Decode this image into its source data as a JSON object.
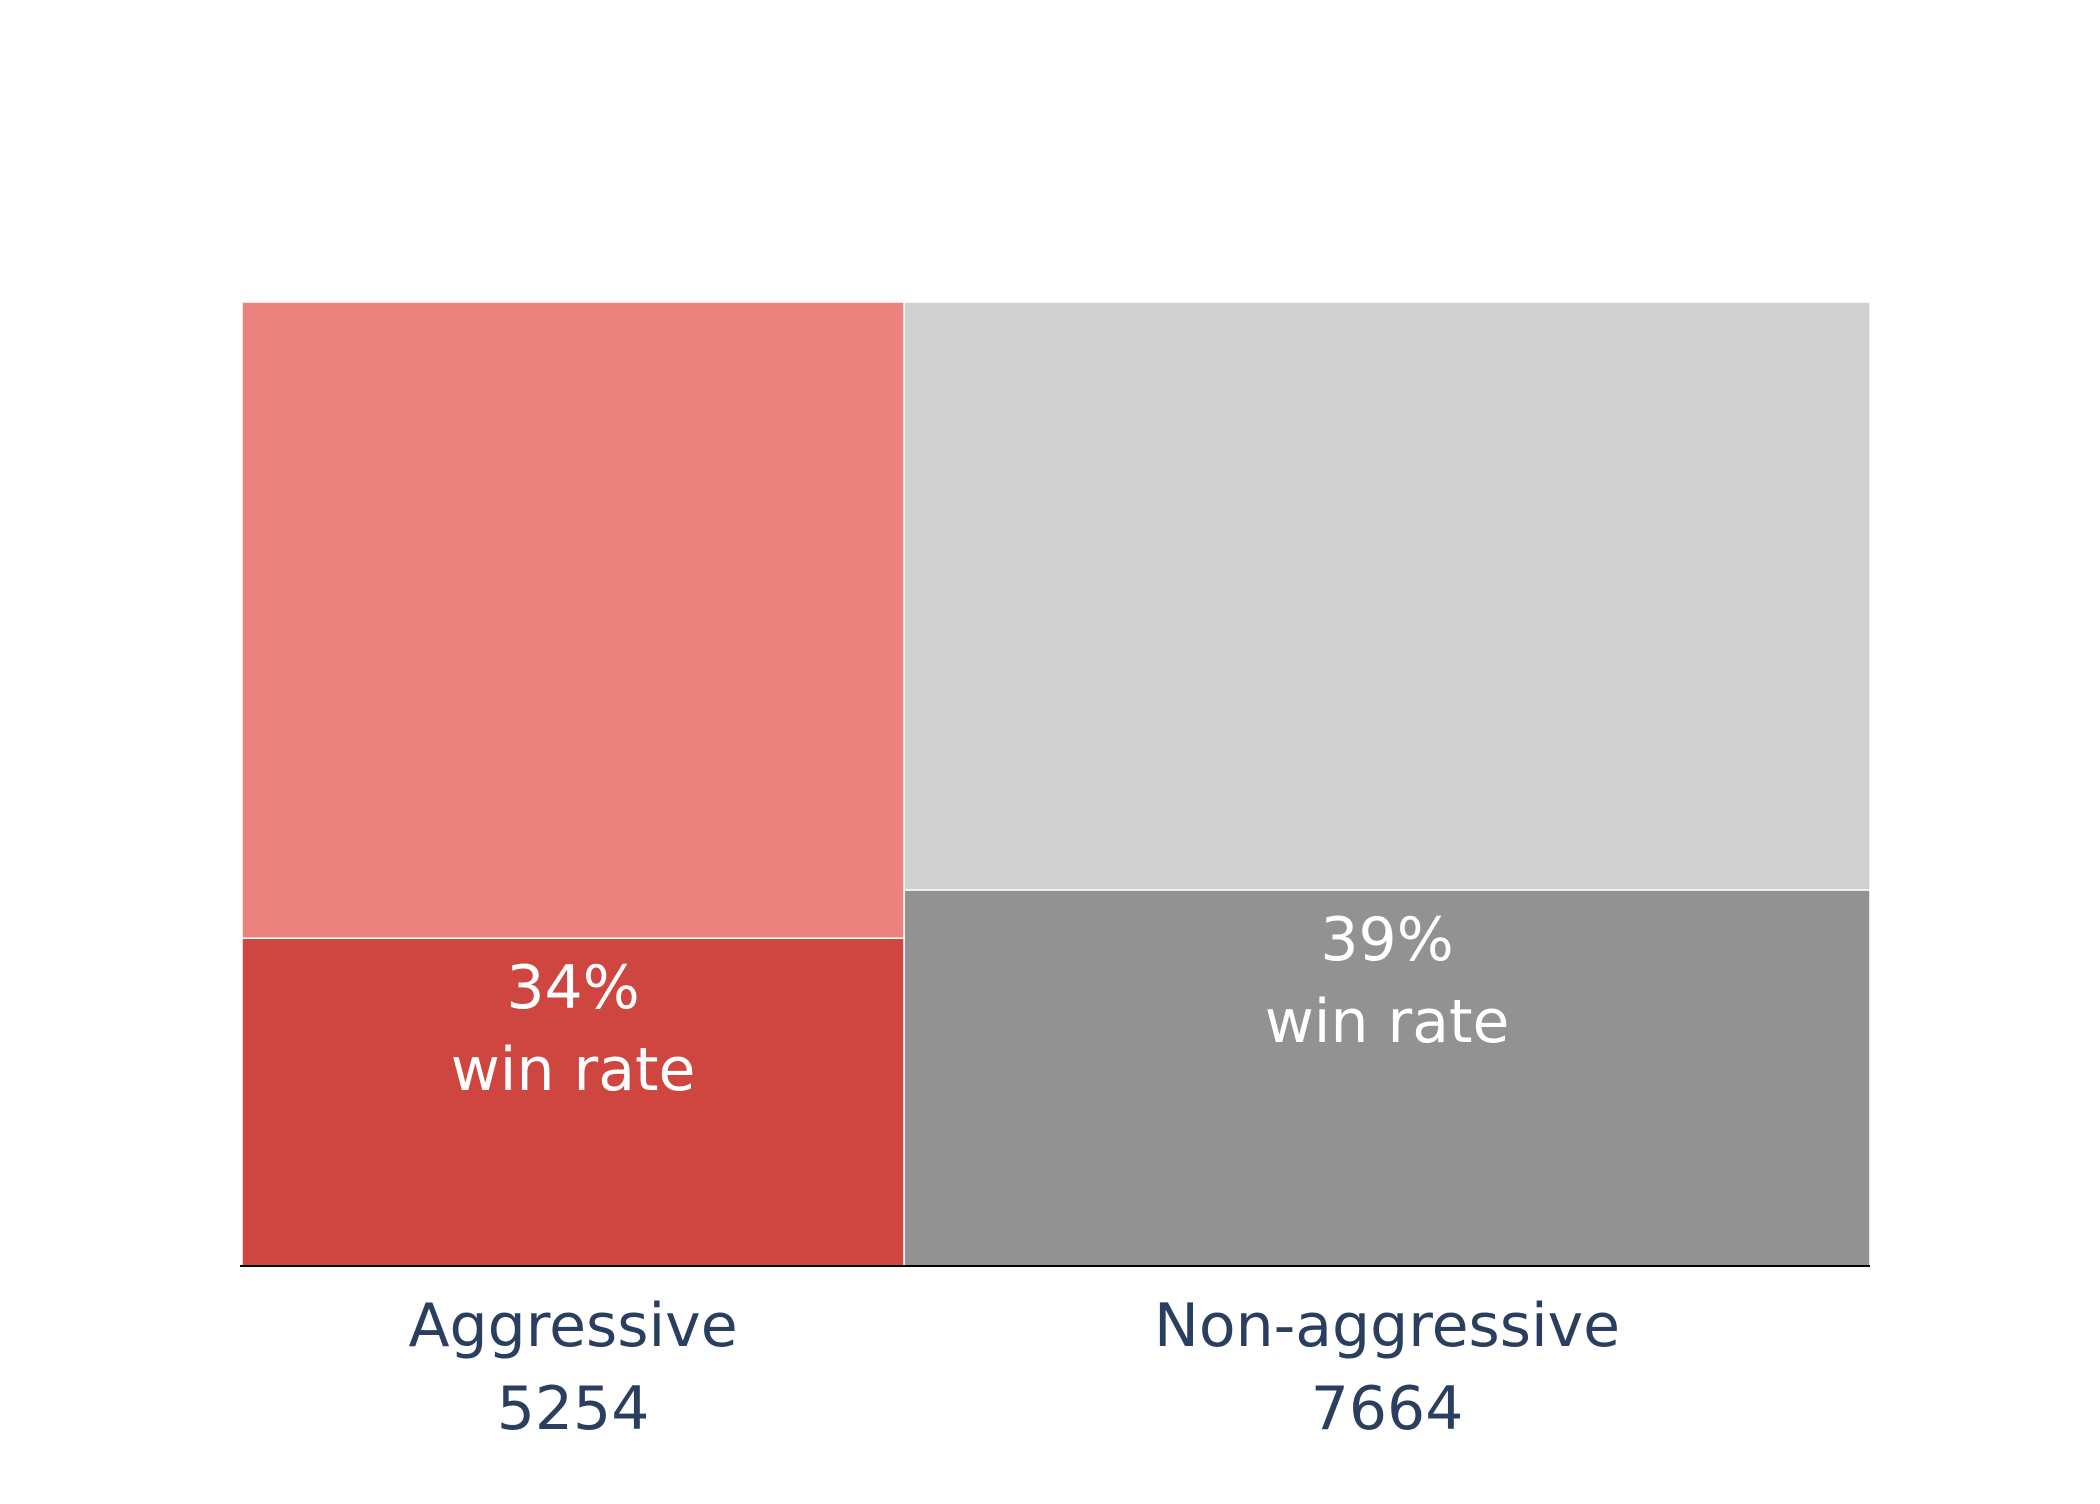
{
  "chart_data": {
    "type": "bar",
    "variant": "marimekko",
    "categories": [
      {
        "label": "Aggressive",
        "count": 5254,
        "count_label": "5254",
        "win_rate": 0.34,
        "win_rate_label": "34%",
        "win_rate_suffix": "win rate",
        "color_total": "#ec827e",
        "color_win": "#cf4540"
      },
      {
        "label": "Non-aggressive",
        "count": 7664,
        "count_label": "7664",
        "win_rate": 0.39,
        "win_rate_label": "39%",
        "win_rate_suffix": "win rate",
        "color_total": "#d1d0d1",
        "color_win": "#929292"
      }
    ],
    "ylim": [
      0,
      1
    ],
    "grid": false,
    "axis_label_color": "#2a3f5f",
    "value_label_color": "#ffffff"
  }
}
